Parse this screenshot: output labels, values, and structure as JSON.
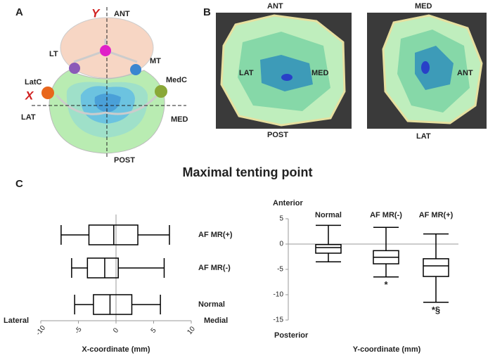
{
  "panel_a": {
    "label": "A",
    "y_axis": "Y",
    "x_axis": "X",
    "ant": "ANT",
    "post": "POST",
    "lat": "LAT",
    "med": "MED",
    "lt": "LT",
    "mt": "MT",
    "latc": "LatC",
    "medc": "MedC"
  },
  "panel_b": {
    "label": "B",
    "left": {
      "top": "ANT",
      "bottom": "POST",
      "left": "LAT",
      "right": "MED"
    },
    "right": {
      "top": "MED",
      "bottom": "LAT",
      "right": "ANT"
    }
  },
  "panel_c": {
    "label": "C",
    "title": "Maximal tenting point"
  },
  "chart_data": [
    {
      "type": "boxplot",
      "orientation": "horizontal",
      "xlabel": "X-coordinate (mm)",
      "left_label": "Lateral",
      "right_label": "Medial",
      "categories": [
        "AF MR(+)",
        "AF MR(-)",
        "Normal"
      ],
      "boxes": [
        {
          "min": -7.3,
          "q1": -3.6,
          "median": -0.3,
          "q3": 2.9,
          "max": 7.1
        },
        {
          "min": -5.9,
          "q1": -3.8,
          "median": -1.5,
          "q3": 0.3,
          "max": 6.4
        },
        {
          "min": -5.5,
          "q1": -3.0,
          "median": -0.8,
          "q3": 2.1,
          "max": 5.9
        }
      ],
      "xlim": [
        -10,
        10
      ],
      "xticks": [
        -10,
        -5,
        0,
        5,
        10
      ],
      "zero_line": true
    },
    {
      "type": "boxplot",
      "orientation": "vertical",
      "ylabel": "Y-coordinate (mm)",
      "top_label": "Anterior",
      "bottom_label": "Posterior",
      "categories": [
        "Normal",
        "AF MR(-)",
        "AF MR(+)"
      ],
      "boxes": [
        {
          "min": -3.5,
          "q1": -1.8,
          "median": -0.7,
          "q3": -0.1,
          "max": 3.7
        },
        {
          "min": -6.5,
          "q1": -3.9,
          "median": -2.6,
          "q3": -1.3,
          "max": 3.3
        },
        {
          "min": -11.5,
          "q1": -6.4,
          "median": -4.3,
          "q3": -2.9,
          "max": 2.0
        }
      ],
      "ylim": [
        -15,
        5
      ],
      "yticks": [
        5,
        0,
        -5,
        -10,
        -15
      ],
      "zero_line": true,
      "annotations": [
        {
          "text": "*",
          "category": "AF MR(-)"
        },
        {
          "text": "*§",
          "category": "AF MR(+)"
        }
      ]
    }
  ]
}
